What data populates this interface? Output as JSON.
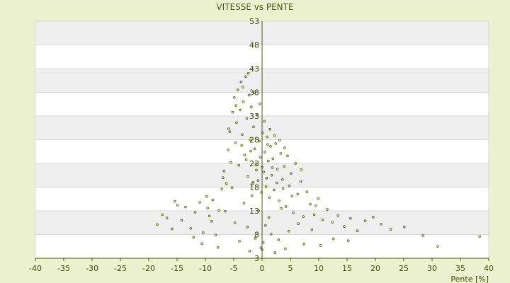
{
  "chart_data": {
    "type": "scatter",
    "title": "VITESSE vs PENTE",
    "xlabel": "Pente [%]",
    "ylabel": "",
    "xlim": [
      -40,
      40
    ],
    "ylim": [
      3,
      53
    ],
    "x_ticks": [
      -40,
      -35,
      -30,
      -25,
      -20,
      -15,
      -10,
      -5,
      0,
      5,
      10,
      15,
      20,
      25,
      30,
      35,
      40
    ],
    "y_ticks": [
      3,
      8,
      13,
      18,
      23,
      28,
      33,
      38,
      43,
      48,
      53
    ],
    "x_tick_labels": [
      "-40",
      "-35",
      "-30",
      "-25",
      "-20",
      "-15",
      "-10",
      "-5",
      "0",
      "5",
      "10",
      "15",
      "20",
      "25",
      "30",
      "35",
      "40"
    ],
    "y_tick_labels": [
      "3",
      "8",
      "13",
      "18",
      "23",
      "28",
      "33",
      "38",
      "43",
      "48",
      "53"
    ],
    "grid": "horizontal bands",
    "legend": "none",
    "colors": {
      "background": "#ecf2cf",
      "band_light": "#ffffff",
      "band_dark": "#efefef",
      "grid_line": "#d8d8d8",
      "axis": "#4a5a10",
      "marker": "#5c7010"
    },
    "points": [
      [
        -18.5,
        10.1
      ],
      [
        -17.6,
        12.2
      ],
      [
        -16.8,
        11.5
      ],
      [
        -15.4,
        15.0
      ],
      [
        -14.9,
        14.2
      ],
      [
        -14.2,
        11.0
      ],
      [
        -13.5,
        13.8
      ],
      [
        -12.6,
        9.3
      ],
      [
        -11.8,
        12.7
      ],
      [
        -11.0,
        14.8
      ],
      [
        -10.4,
        8.4
      ],
      [
        -9.8,
        16.0
      ],
      [
        -9.3,
        11.9
      ],
      [
        -8.7,
        15.3
      ],
      [
        -8.2,
        7.9
      ],
      [
        -7.6,
        13.1
      ],
      [
        -7.1,
        17.6
      ],
      [
        -6.7,
        21.4
      ],
      [
        -6.3,
        18.8
      ],
      [
        -6.0,
        25.9
      ],
      [
        -5.7,
        29.7
      ],
      [
        -5.5,
        23.2
      ],
      [
        -5.2,
        33.8
      ],
      [
        -4.9,
        36.9
      ],
      [
        -4.7,
        27.4
      ],
      [
        -4.5,
        31.6
      ],
      [
        -4.3,
        38.5
      ],
      [
        -4.1,
        22.6
      ],
      [
        -3.9,
        34.3
      ],
      [
        -3.7,
        40.2
      ],
      [
        -3.5,
        29.1
      ],
      [
        -3.3,
        36.0
      ],
      [
        -3.1,
        24.8
      ],
      [
        -2.9,
        41.3
      ],
      [
        -2.7,
        32.5
      ],
      [
        -2.5,
        20.3
      ],
      [
        -2.3,
        37.4
      ],
      [
        -2.1,
        28.0
      ],
      [
        -1.9,
        34.9
      ],
      [
        -1.7,
        18.7
      ],
      [
        -1.5,
        30.7
      ],
      [
        -1.3,
        26.1
      ],
      [
        -1.1,
        22.9
      ],
      [
        -0.9,
        33.2
      ],
      [
        -0.7,
        19.4
      ],
      [
        -0.5,
        27.7
      ],
      [
        -0.3,
        24.3
      ],
      [
        -0.1,
        16.9
      ],
      [
        0.1,
        29.5
      ],
      [
        0.3,
        21.2
      ],
      [
        0.5,
        25.4
      ],
      [
        0.7,
        18.1
      ],
      [
        0.9,
        28.6
      ],
      [
        1.1,
        23.5
      ],
      [
        1.3,
        15.8
      ],
      [
        1.5,
        26.6
      ],
      [
        1.7,
        20.5
      ],
      [
        1.9,
        24.0
      ],
      [
        2.1,
        17.4
      ],
      [
        2.4,
        27.2
      ],
      [
        2.7,
        21.8
      ],
      [
        3.0,
        15.1
      ],
      [
        3.3,
        25.1
      ],
      [
        3.6,
        19.6
      ],
      [
        3.9,
        22.4
      ],
      [
        4.2,
        13.9
      ],
      [
        4.5,
        24.6
      ],
      [
        4.8,
        18.3
      ],
      [
        5.1,
        20.9
      ],
      [
        5.5,
        12.6
      ],
      [
        5.9,
        23.0
      ],
      [
        6.3,
        16.5
      ],
      [
        6.8,
        19.2
      ],
      [
        7.3,
        11.8
      ],
      [
        7.9,
        17.0
      ],
      [
        8.5,
        14.4
      ],
      [
        9.2,
        12.2
      ],
      [
        9.9,
        15.6
      ],
      [
        10.7,
        11.1
      ],
      [
        11.5,
        13.3
      ],
      [
        12.4,
        10.6
      ],
      [
        13.4,
        12.0
      ],
      [
        14.5,
        9.7
      ],
      [
        15.6,
        11.4
      ],
      [
        16.8,
        8.8
      ],
      [
        18.2,
        10.9
      ],
      [
        19.6,
        11.7
      ],
      [
        21.0,
        10.2
      ],
      [
        22.7,
        9.1
      ],
      [
        25.1,
        9.6
      ],
      [
        28.4,
        7.8
      ],
      [
        31.0,
        5.5
      ],
      [
        38.4,
        7.6
      ],
      [
        -0.2,
        5.2
      ],
      [
        0.2,
        6.3
      ],
      [
        0.0,
        4.8
      ],
      [
        -1.2,
        7.2
      ],
      [
        1.6,
        8.1
      ],
      [
        -2.6,
        9.6
      ],
      [
        2.9,
        6.9
      ],
      [
        -4.8,
        10.5
      ],
      [
        4.7,
        8.7
      ],
      [
        -6.5,
        12.9
      ],
      [
        6.4,
        10.3
      ],
      [
        -3.2,
        14.6
      ],
      [
        3.4,
        13.5
      ],
      [
        -1.8,
        16.2
      ],
      [
        1.2,
        11.6
      ],
      [
        -0.6,
        13.0
      ],
      [
        0.6,
        9.9
      ],
      [
        -5.3,
        17.9
      ],
      [
        5.3,
        16.1
      ],
      [
        -8.9,
        10.8
      ],
      [
        8.8,
        9.0
      ],
      [
        -12.1,
        7.4
      ],
      [
        12.6,
        7.1
      ],
      [
        -15.9,
        9.2
      ],
      [
        15.2,
        6.7
      ],
      [
        -10.6,
        6.1
      ],
      [
        10.3,
        5.7
      ],
      [
        -7.8,
        5.3
      ],
      [
        7.4,
        6.0
      ],
      [
        -4.0,
        6.6
      ],
      [
        4.1,
        5.0
      ],
      [
        -2.2,
        4.5
      ],
      [
        2.3,
        4.2
      ],
      [
        -9.6,
        13.6
      ],
      [
        9.5,
        14.1
      ],
      [
        -6.9,
        20.0
      ],
      [
        6.9,
        21.7
      ],
      [
        -5.9,
        30.3
      ],
      [
        -4.6,
        35.2
      ],
      [
        -3.4,
        39.1
      ],
      [
        -2.4,
        42.0
      ],
      [
        -1.4,
        37.9
      ],
      [
        -0.4,
        35.6
      ],
      [
        0.4,
        31.9
      ],
      [
        1.4,
        30.2
      ],
      [
        2.2,
        28.9
      ],
      [
        3.1,
        27.9
      ],
      [
        4.0,
        26.3
      ],
      [
        -2.0,
        25.6
      ],
      [
        -1.0,
        21.6
      ],
      [
        0.8,
        19.9
      ],
      [
        1.8,
        22.1
      ],
      [
        2.6,
        18.9
      ],
      [
        3.7,
        17.7
      ],
      [
        -3.6,
        26.8
      ],
      [
        -2.8,
        23.8
      ],
      [
        -1.6,
        19.0
      ],
      [
        0.0,
        22.2
      ],
      [
        1.0,
        27.0
      ]
    ]
  }
}
